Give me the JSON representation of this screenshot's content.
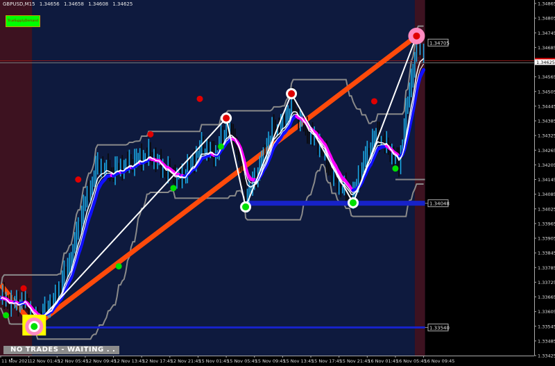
{
  "header": {
    "symbol": "GBPUSD,M15",
    "open": "1.34656",
    "high": "1.34658",
    "low": "1.34608",
    "close": "1.34625"
  },
  "indicator_badge": "TrueSupplyDemand",
  "status_text": "NO TRADES - WAITING . . .",
  "colors": {
    "background": "#0e1a3e",
    "session_zone": "#3d1220",
    "up_bar": "#1aa6e0",
    "down_bar": "#0a0a0a",
    "trend_line": "#ff4a0a",
    "ma_up": "#1010ff",
    "ma_down": "#ff00ff",
    "channel": "#8a8a8a",
    "support": "#1722c8"
  },
  "chart_data": {
    "type": "candlestick",
    "timeframe": "M15",
    "y_ticks": [
      "1.34865",
      "1.34805",
      "1.34745",
      "1.34685",
      "1.34565",
      "1.34505",
      "1.34445",
      "1.34385",
      "1.34325",
      "1.34265",
      "1.34205",
      "1.34145",
      "1.34085",
      "1.34025",
      "1.33965",
      "1.33905",
      "1.33845",
      "1.33785",
      "1.33725",
      "1.33665",
      "1.33605",
      "1.33545",
      "1.33485",
      "1.33425"
    ],
    "ylim": [
      1.33425,
      1.34865
    ],
    "x_ticks": [
      "11 Nov 2021",
      "12 Nov 01:45",
      "12 Nov 05:45",
      "12 Nov 09:45",
      "12 Nov 13:45",
      "12 Nov 17:45",
      "12 Nov 21:45",
      "15 Nov 01:45",
      "15 Nov 05:45",
      "15 Nov 09:45",
      "15 Nov 13:45",
      "15 Nov 17:45",
      "15 Nov 21:45",
      "16 Nov 01:45",
      "16 Nov 05:45",
      "16 Nov 09:45"
    ],
    "bars_per_tick": 16,
    "bar_count": 241,
    "close_path": [
      [
        0,
        1.33658
      ],
      [
        6,
        1.33629
      ],
      [
        14,
        1.33644
      ],
      [
        19,
        1.33558
      ],
      [
        24,
        1.33587
      ],
      [
        31,
        1.33658
      ],
      [
        39,
        1.338
      ],
      [
        47,
        1.34027
      ],
      [
        55,
        1.34198
      ],
      [
        63,
        1.34169
      ],
      [
        71,
        1.34198
      ],
      [
        79,
        1.34226
      ],
      [
        85,
        1.3424
      ],
      [
        94,
        1.34169
      ],
      [
        102,
        1.34141
      ],
      [
        114,
        1.34269
      ],
      [
        122,
        1.3424
      ],
      [
        128,
        1.34354
      ],
      [
        134,
        1.34283
      ],
      [
        139,
        1.34056
      ],
      [
        146,
        1.34169
      ],
      [
        154,
        1.3434
      ],
      [
        161,
        1.34368
      ],
      [
        165,
        1.34453
      ],
      [
        173,
        1.3434
      ],
      [
        181,
        1.34283
      ],
      [
        189,
        1.34141
      ],
      [
        197,
        1.34084
      ],
      [
        200,
        1.3407
      ],
      [
        205,
        1.34198
      ],
      [
        213,
        1.34325
      ],
      [
        218,
        1.34283
      ],
      [
        226,
        1.34198
      ],
      [
        232,
        1.3451
      ],
      [
        236,
        1.3468
      ],
      [
        240,
        1.34666
      ]
    ],
    "zigzag": [
      [
        19,
        1.33544
      ],
      [
        128,
        1.34396
      ],
      [
        139,
        1.34033
      ],
      [
        165,
        1.34496
      ],
      [
        200,
        1.3405
      ],
      [
        236,
        1.34732
      ]
    ],
    "trend_line": [
      [
        0,
        1.33715
      ],
      [
        19,
        1.33544
      ],
      [
        236,
        1.34732
      ]
    ],
    "support_levels": [
      {
        "from": 19,
        "price": 1.3354,
        "label": "1.33540"
      },
      {
        "from": 139,
        "price": 1.34048,
        "label": "1.34048"
      }
    ],
    "resistance_label": {
      "price": 1.34705,
      "label": "1.34705"
    },
    "current_price": {
      "price": 1.34625,
      "label": "1.34625"
    },
    "minor_level": {
      "from": 224,
      "price": 1.34145
    },
    "sell_signals": [
      [
        13,
        1.337
      ],
      [
        44,
        1.34145
      ],
      [
        85,
        1.3433
      ],
      [
        113,
        1.34475
      ],
      [
        212,
        1.34465
      ]
    ],
    "buy_signals": [
      [
        3,
        1.3359
      ],
      [
        67,
        1.3379
      ],
      [
        98,
        1.3411
      ],
      [
        125,
        1.3428
      ],
      [
        224,
        1.3419
      ]
    ],
    "major_highs": [
      [
        128,
        1.34396
      ],
      [
        165,
        1.34496
      ],
      [
        236,
        1.34732
      ]
    ],
    "major_lows": [
      [
        19,
        1.33544
      ],
      [
        139,
        1.34033
      ],
      [
        200,
        1.3405
      ]
    ],
    "session_zones": [
      [
        0,
        17
      ],
      [
        235,
        240
      ]
    ],
    "right_shift_bars": 62
  }
}
